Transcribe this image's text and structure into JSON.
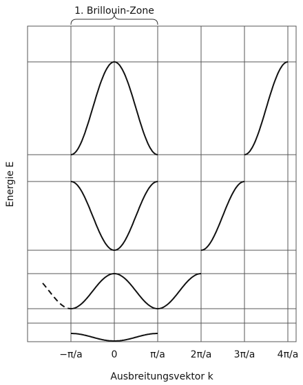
{
  "header": {
    "title": "1. Brillouin-Zone"
  },
  "axes": {
    "y_label": "Energie E",
    "x_label": "Ausbreitungsvektor k",
    "x_ticks": [
      "−π/a",
      "0",
      "π/a",
      "2π/a",
      "3π/a",
      "4π/a"
    ]
  }
}
